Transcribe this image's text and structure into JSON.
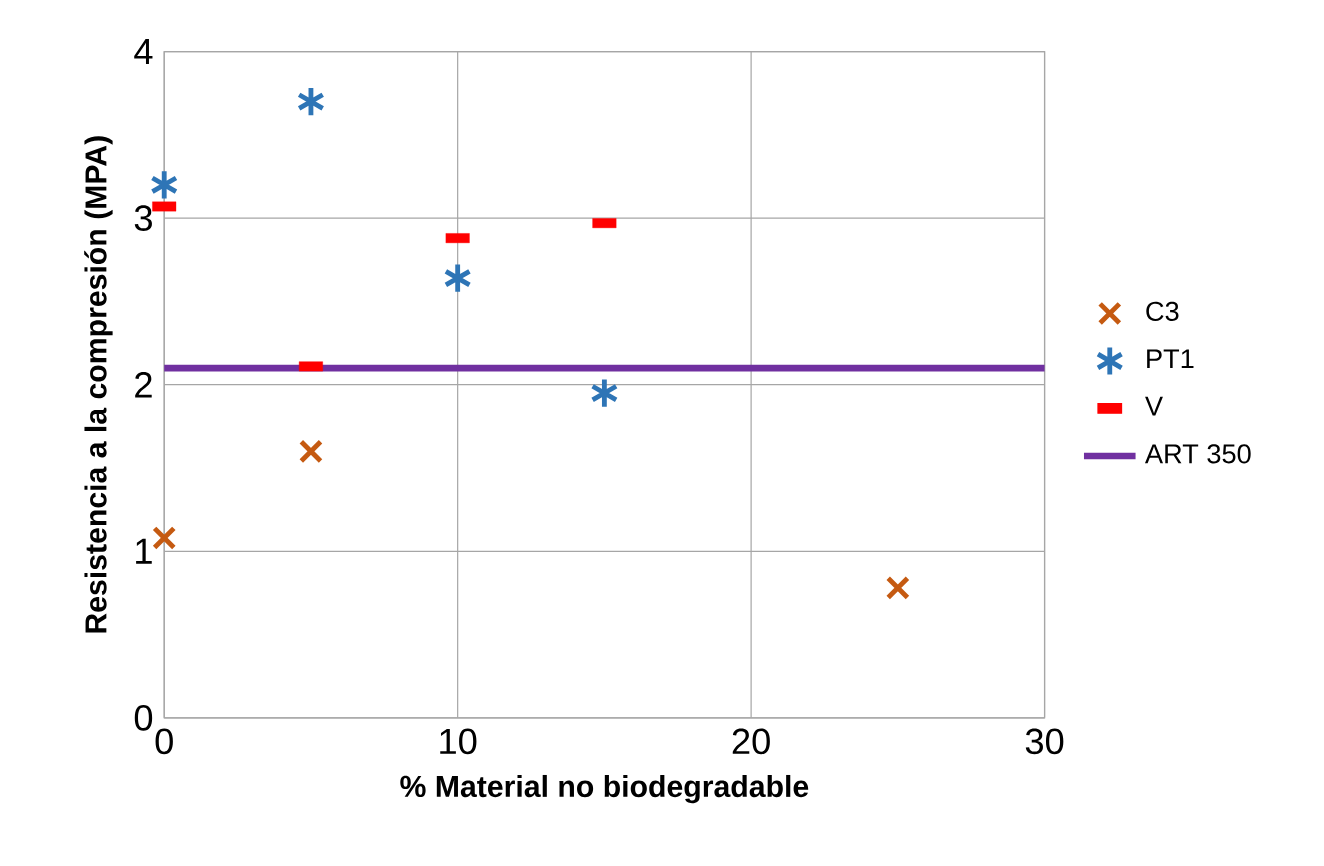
{
  "chart_data": {
    "type": "scatter",
    "xlabel": "% Material no biodegradable",
    "ylabel": "Resistencia a la compresión (MPA)",
    "xlim": [
      0,
      30
    ],
    "xticks": [
      0,
      10,
      20,
      30
    ],
    "ylim": [
      0,
      4
    ],
    "yticks": [
      0,
      1,
      2,
      3,
      4
    ],
    "grid": true,
    "legend": "right",
    "series": [
      {
        "name": "C3",
        "color": "#c55a11",
        "marker": "cross",
        "x": [
          0,
          5,
          25
        ],
        "values": [
          1.08,
          1.6,
          0.78
        ]
      },
      {
        "name": "PT1",
        "color": "#2e75b6",
        "marker": "cross",
        "x": [
          0,
          5,
          10,
          15
        ],
        "values": [
          3.2,
          3.7,
          2.64,
          1.95
        ]
      },
      {
        "name": "V",
        "color": "#ff0000",
        "marker": "square",
        "x": [
          0,
          5,
          10,
          15
        ],
        "values": [
          3.07,
          2.11,
          2.88,
          2.97
        ]
      },
      {
        "name": "ART 350",
        "type": "line",
        "color": "#7030a0",
        "marker": "none",
        "x": [
          0,
          30
        ],
        "values": [
          2.1,
          2.1
        ]
      }
    ]
  }
}
